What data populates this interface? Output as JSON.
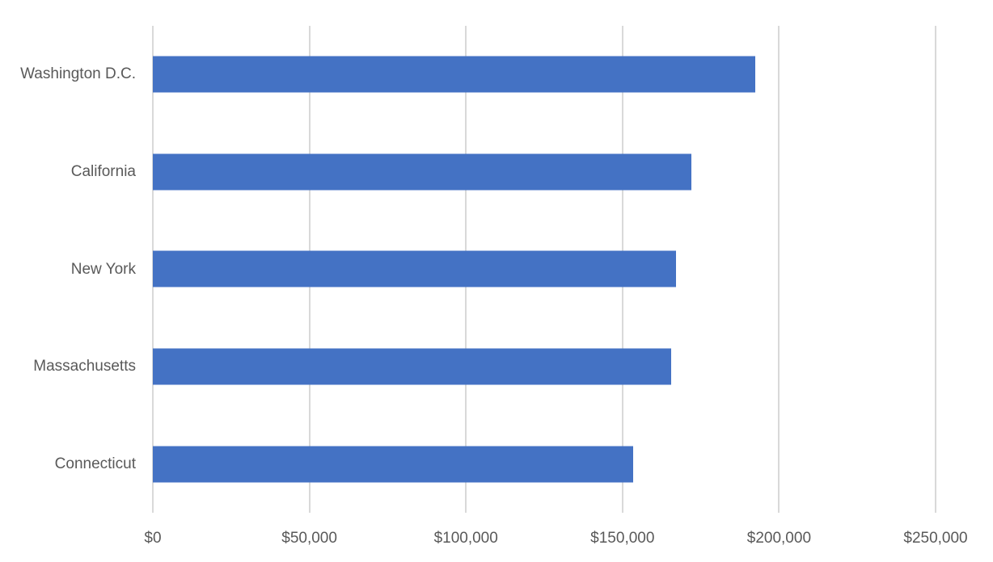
{
  "chart_data": {
    "type": "bar",
    "orientation": "horizontal",
    "title": "",
    "xlabel": "",
    "ylabel": "",
    "categories": [
      "Washington D.C.",
      "California",
      "New York",
      "Massachusetts",
      "Connecticut"
    ],
    "values": [
      192500,
      172000,
      167000,
      165500,
      153500
    ],
    "xlim": [
      0,
      250000
    ],
    "x_ticks": [
      {
        "value": 0,
        "label": "$0"
      },
      {
        "value": 50000,
        "label": "$50,000"
      },
      {
        "value": 100000,
        "label": "$100,000"
      },
      {
        "value": 150000,
        "label": "$150,000"
      },
      {
        "value": 200000,
        "label": "$200,000"
      },
      {
        "value": 250000,
        "label": "$250,000"
      }
    ],
    "grid": "vertical-gridlines-on",
    "legend": "none"
  },
  "colors": {
    "bar": "#4472C4",
    "gridline": "#D9D9D9",
    "axis_text": "#595959",
    "category_text": "#595959",
    "background": "#FFFFFF"
  }
}
